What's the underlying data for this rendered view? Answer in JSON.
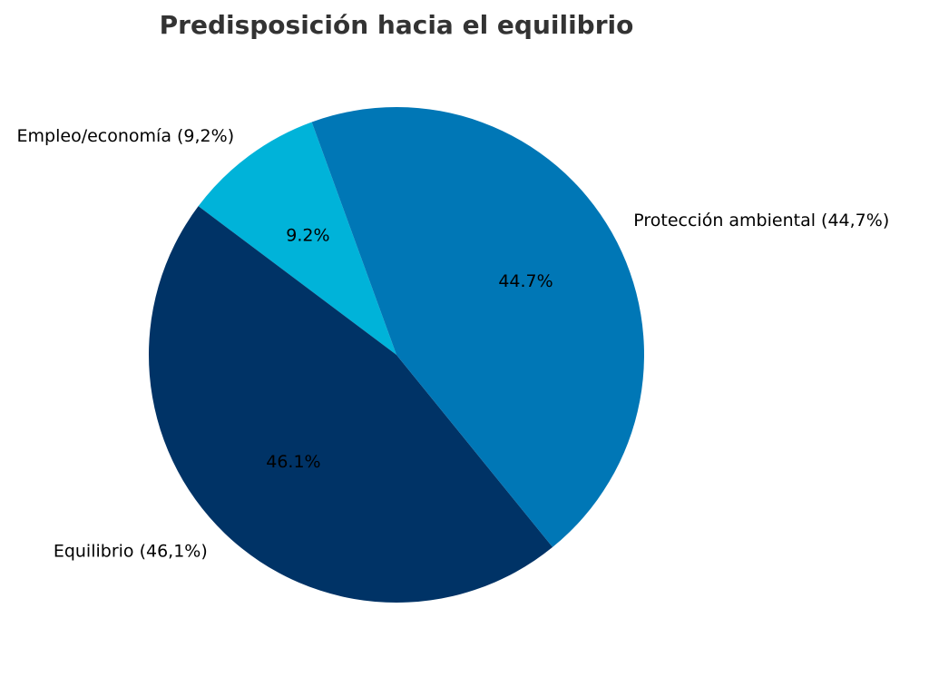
{
  "chart_data": {
    "type": "pie",
    "title": "Predisposición hacia el equilibrio",
    "start_angle_deg": 110,
    "direction": "counterclockwise",
    "legend": "none",
    "slices": [
      {
        "label": "Empleo/economía (9,2%)",
        "value": 9.2,
        "pct_text": "9.2%",
        "color": "#00b3d9"
      },
      {
        "label": "Equilibrio (46,1%)",
        "value": 46.1,
        "pct_text": "46.1%",
        "color": "#003366"
      },
      {
        "label": "Protección ambiental (44,7%)",
        "value": 44.7,
        "pct_text": "44.7%",
        "color": "#0077b6"
      }
    ]
  }
}
